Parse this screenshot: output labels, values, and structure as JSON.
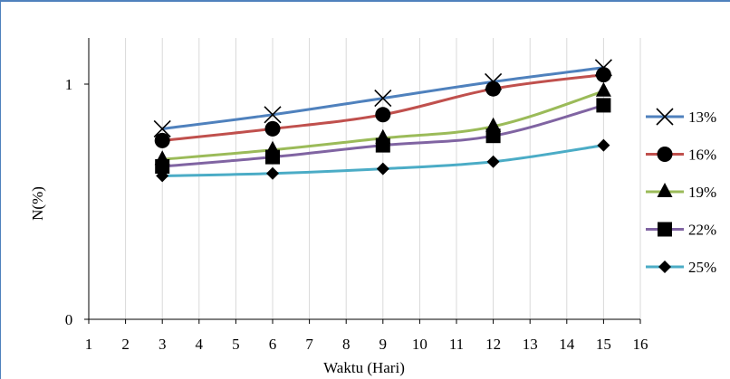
{
  "chart_data": {
    "type": "line",
    "title": "",
    "xlabel": "Waktu (Hari)",
    "ylabel": "N(%)",
    "xlim": [
      1,
      16
    ],
    "ylim": [
      0,
      1
    ],
    "x_ticks": [
      "1",
      "2",
      "3",
      "4",
      "5",
      "6",
      "7",
      "8",
      "9",
      "10",
      "11",
      "12",
      "13",
      "14",
      "15",
      "16"
    ],
    "y_ticks": [
      "0",
      "1"
    ],
    "grid": "vertical",
    "legend_position": "right",
    "x": [
      3,
      6,
      9,
      12,
      15
    ],
    "series": [
      {
        "name": "13%",
        "color": "#4f81bd",
        "marker": "x",
        "values": [
          0.81,
          0.87,
          0.94,
          1.01,
          1.07
        ]
      },
      {
        "name": "16%",
        "color": "#c0504d",
        "marker": "circle",
        "values": [
          0.76,
          0.81,
          0.87,
          0.98,
          1.04
        ]
      },
      {
        "name": "19%",
        "color": "#9bbb59",
        "marker": "triangle",
        "values": [
          0.68,
          0.72,
          0.77,
          0.82,
          0.97
        ]
      },
      {
        "name": "22%",
        "color": "#8064a2",
        "marker": "square",
        "values": [
          0.65,
          0.69,
          0.74,
          0.78,
          0.91
        ]
      },
      {
        "name": "25%",
        "color": "#4bacc6",
        "marker": "diamond",
        "values": [
          0.61,
          0.62,
          0.64,
          0.67,
          0.74
        ]
      }
    ]
  }
}
